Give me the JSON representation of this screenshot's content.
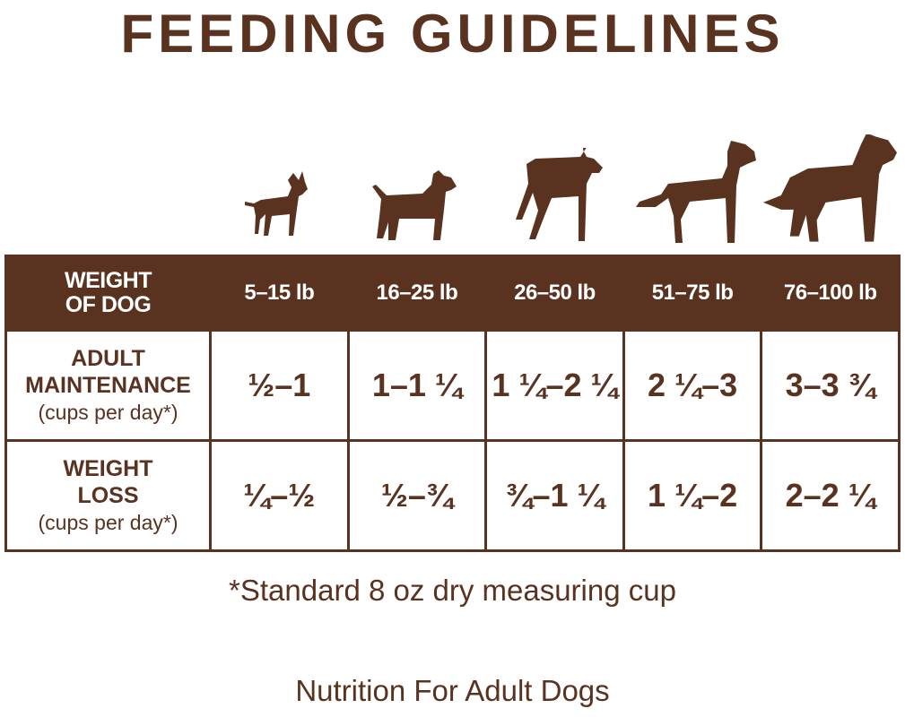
{
  "title": "FEEDING GUIDELINES",
  "colors": {
    "brand_brown": "#5a3220",
    "background": "#ffffff"
  },
  "dog_icons": [
    "chihuahua-silhouette-icon",
    "terrier-silhouette-icon",
    "boxer-silhouette-icon",
    "retriever-silhouette-icon",
    "bernese-silhouette-icon"
  ],
  "table": {
    "header_label": [
      "WEIGHT",
      "OF DOG"
    ],
    "columns": [
      "5–15 lb",
      "16–25 lb",
      "26–50 lb",
      "51–75 lb",
      "76–100 lb"
    ],
    "rows": [
      {
        "label": [
          "ADULT",
          "MAINTENANCE"
        ],
        "sublabel": "(cups per day*)",
        "values": [
          "½–1",
          "1–1 ¼",
          "1 ¼–2 ¼",
          "2 ¼–3",
          "3–3 ¾"
        ]
      },
      {
        "label": [
          "WEIGHT",
          "LOSS"
        ],
        "sublabel": "(cups per day*)",
        "values": [
          "¼–½",
          "½–¾",
          "¾–1 ¼",
          "1 ¼–2",
          "2–2 ¼"
        ]
      }
    ]
  },
  "footnote": "*Standard 8 oz dry measuring cup",
  "subtitle": "Nutrition For Adult Dogs"
}
